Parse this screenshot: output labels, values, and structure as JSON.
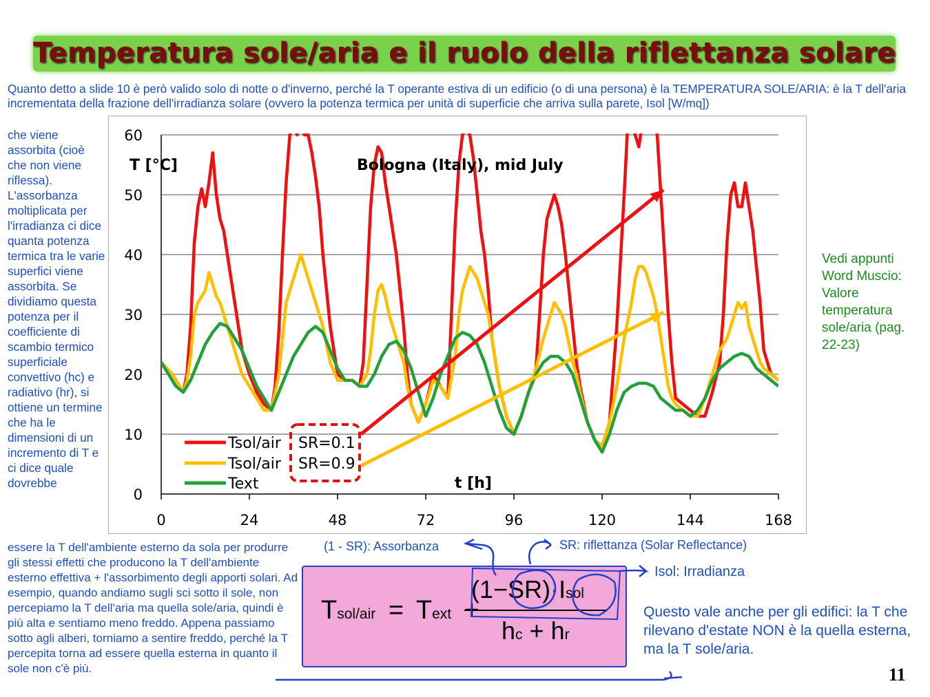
{
  "title": "Temperatura sole/aria e il ruolo della riflettanza solare",
  "intro_text": "Quanto detto a slide 10 è però valido solo di notte o d'inverno, perché la T operante estiva di un edificio (o di una persona) è la TEMPERATURA SOLE/ARIA: è la T dell'aria incrementata della frazione dell'irradianza solare (ovvero la potenza termica per unità di superficie che arriva sulla parete, Isol [W/mq])",
  "left_column_text": "che viene assorbita (cioè che non viene riflessa). L'assorbanza moltiplicata per l'irradianza ci dice quanta potenza termica tra le varie superfici viene assorbita. Se dividiamo questa potenza per il coefficiente di scambio termico superficiale convettivo (hc) e radiativo (hr), si ottiene un termine che ha le dimensioni di un incremento di T e ci dice quale dovrebbe",
  "bottom_text": "essere la T dell'ambiente esterno da sola per produrre gli stessi effetti che producono la T dell'ambiente esterno effettiva + l'assorbimento degli apporti solari. Ad esempio, quando andiamo sugli sci sotto il sole, non percepiamo la T dell'aria ma quella sole/aria, quindi è più alta e sentiamo meno freddo. Appena passiamo sotto agli alberi, torniamo a sentire freddo, perché la T percepita torna ad essere quella esterna in quanto il sole non c'è più.",
  "side_note": "Vedi appunti Word Muscio: Valore temperatura sole/aria (pag. 22-23)",
  "annotations": {
    "absorbance": "(1 - SR): Assorbanza",
    "reflectance": "SR: riflettanza (Solar Reflectance)",
    "irradiance": "Isol: Irradianza"
  },
  "formula": {
    "lhs_symbol": "T",
    "lhs_sub": "sol/air",
    "equals": "=",
    "text_symbol": "T",
    "text_sub": "ext",
    "plus": "+",
    "numerator_paren_open": "(1",
    "numerator_minus": "−",
    "numerator_sr": "SR",
    "numerator_paren_close": ")",
    "numerator_dot": "·",
    "numerator_i": "I",
    "numerator_i_sub": "sol",
    "den_h1": "h",
    "den_h1_sub": "c",
    "den_plus": "+",
    "den_h2": "h",
    "den_h2_sub": "r"
  },
  "conclusion": "Questo vale anche per gli edifici: la T che rilevano d'estate NON è la quella esterna, ma la T sole/aria.",
  "page_number": "11",
  "colors": {
    "title_bg": "#7ad14a",
    "title_text": "#7a0e0e",
    "body_text": "#1f4fb8",
    "side_note": "#1c8c1c",
    "red_series": "#f01010",
    "yellow_series": "#ffbf00",
    "green_series": "#22a03a",
    "formula_bg": "#f2a8d8",
    "annotation_ink": "#2340c8"
  },
  "chart_data": {
    "type": "line",
    "title": "Bologna (Italy), mid July",
    "xlabel": "t [h]",
    "ylabel": "T [°C]",
    "xlim": [
      0,
      168
    ],
    "ylim": [
      0,
      60
    ],
    "xticks": [
      0,
      24,
      48,
      72,
      96,
      120,
      144,
      168
    ],
    "yticks": [
      0,
      10,
      20,
      30,
      40,
      50,
      60
    ],
    "grid": "horizontal",
    "legend_position": "bottom-left",
    "legend": [
      "Tsol/air SR=0.1",
      "Tsol/air SR=0.9",
      "Text"
    ],
    "series": [
      {
        "name": "Tsol/air SR=0.1",
        "color": "#f01010",
        "x": [
          0,
          3,
          5,
          6,
          7,
          8,
          9,
          10,
          11,
          12,
          13,
          14,
          15,
          16,
          17,
          18,
          20,
          22,
          24,
          26,
          28,
          30,
          31,
          32,
          33,
          34,
          35,
          36,
          37,
          38,
          39,
          40,
          41,
          42,
          43,
          44,
          46,
          48,
          50,
          52,
          54,
          55,
          56,
          57,
          58,
          59,
          60,
          61,
          62,
          63,
          64,
          65,
          66,
          67,
          68,
          70,
          72,
          74,
          76,
          78,
          79,
          80,
          81,
          82,
          83,
          84,
          85,
          86,
          87,
          88,
          89,
          90,
          92,
          94,
          96,
          98,
          100,
          102,
          103,
          104,
          105,
          106,
          107,
          108,
          109,
          110,
          111,
          112,
          113,
          114,
          116,
          118,
          120,
          122,
          124,
          126,
          127,
          128,
          129,
          130,
          131,
          132,
          133,
          134,
          135,
          136,
          137,
          138,
          139,
          140,
          142,
          144,
          146,
          148,
          150,
          152,
          153,
          154,
          155,
          156,
          157,
          158,
          159,
          160,
          161,
          162,
          163,
          164,
          166,
          168
        ],
        "y": [
          22,
          20,
          18,
          17,
          20,
          28,
          42,
          48,
          51,
          48,
          52,
          57,
          50,
          46,
          44,
          40,
          32,
          24,
          20,
          17,
          15,
          14,
          18,
          27,
          40,
          52,
          60,
          62,
          60,
          62,
          60,
          60,
          57,
          53,
          48,
          40,
          28,
          20,
          19,
          19,
          18,
          22,
          35,
          48,
          55,
          58,
          57,
          52,
          48,
          44,
          40,
          34,
          28,
          20,
          15,
          12,
          15,
          20,
          18,
          16,
          30,
          45,
          55,
          60,
          61,
          60,
          56,
          50,
          44,
          40,
          34,
          26,
          18,
          13,
          10,
          13,
          17,
          21,
          30,
          40,
          46,
          48,
          50,
          48,
          45,
          40,
          34,
          28,
          22,
          18,
          12,
          9,
          8,
          12,
          28,
          50,
          62,
          62,
          60,
          58,
          62,
          62,
          62,
          62,
          60,
          50,
          40,
          30,
          22,
          16,
          15,
          14,
          13,
          13,
          17,
          22,
          30,
          42,
          50,
          52,
          48,
          48,
          52,
          48,
          44,
          38,
          32,
          24,
          20,
          19
        ]
      },
      {
        "name": "Tsol/air SR=0.9",
        "color": "#ffbf00",
        "x": [
          0,
          3,
          5,
          6,
          7,
          8,
          9,
          10,
          11,
          12,
          13,
          14,
          15,
          16,
          17,
          18,
          20,
          22,
          24,
          26,
          28,
          30,
          32,
          33,
          34,
          35,
          36,
          37,
          38,
          39,
          40,
          41,
          42,
          43,
          44,
          46,
          48,
          50,
          52,
          54,
          56,
          57,
          58,
          59,
          60,
          61,
          62,
          63,
          64,
          65,
          66,
          67,
          68,
          70,
          72,
          74,
          76,
          78,
          80,
          81,
          82,
          83,
          84,
          85,
          86,
          87,
          88,
          89,
          90,
          92,
          94,
          96,
          98,
          100,
          102,
          104,
          105,
          106,
          107,
          108,
          109,
          110,
          111,
          112,
          113,
          114,
          116,
          118,
          120,
          122,
          124,
          126,
          128,
          129,
          130,
          131,
          132,
          133,
          134,
          135,
          136,
          137,
          138,
          139,
          140,
          142,
          144,
          146,
          148,
          150,
          152,
          154,
          155,
          156,
          157,
          158,
          159,
          160,
          161,
          162,
          163,
          164,
          166,
          168
        ],
        "y": [
          22,
          20,
          18,
          17,
          19,
          23,
          30,
          32,
          33,
          34,
          37,
          35,
          33,
          32,
          30,
          28,
          24,
          20,
          18,
          16,
          14,
          14,
          20,
          26,
          32,
          34,
          36,
          38,
          40,
          38,
          36,
          34,
          32,
          30,
          28,
          22,
          19,
          19,
          19,
          18,
          20,
          24,
          30,
          34,
          35,
          33,
          30,
          28,
          26,
          24,
          22,
          18,
          15,
          12,
          15,
          19,
          18,
          16,
          23,
          30,
          34,
          36,
          38,
          37,
          36,
          34,
          32,
          30,
          26,
          18,
          13,
          10,
          13,
          17,
          21,
          26,
          28,
          30,
          32,
          31,
          30,
          28,
          25,
          22,
          20,
          17,
          12,
          9,
          8,
          12,
          18,
          26,
          32,
          36,
          38,
          38,
          37,
          35,
          33,
          30,
          26,
          22,
          18,
          16,
          15,
          14,
          13,
          13,
          16,
          20,
          24,
          26,
          28,
          30,
          32,
          31,
          32,
          28,
          26,
          24,
          22,
          21,
          20,
          19
        ]
      },
      {
        "name": "Text",
        "color": "#22a03a",
        "x": [
          0,
          2,
          4,
          6,
          8,
          10,
          12,
          14,
          16,
          18,
          20,
          22,
          24,
          26,
          28,
          30,
          32,
          34,
          36,
          38,
          40,
          42,
          44,
          46,
          48,
          50,
          52,
          54,
          56,
          58,
          60,
          62,
          64,
          66,
          68,
          70,
          72,
          74,
          76,
          78,
          80,
          82,
          84,
          86,
          88,
          90,
          92,
          94,
          96,
          98,
          100,
          102,
          104,
          106,
          108,
          110,
          112,
          114,
          116,
          118,
          120,
          122,
          124,
          126,
          128,
          130,
          132,
          134,
          136,
          138,
          140,
          142,
          144,
          146,
          148,
          150,
          152,
          154,
          156,
          158,
          160,
          162,
          164,
          166,
          168
        ],
        "y": [
          22,
          20,
          18,
          17,
          19,
          22,
          25,
          27,
          28.5,
          28,
          26,
          24,
          21,
          18,
          16,
          14,
          17,
          20,
          23,
          25,
          27,
          28,
          27,
          24,
          21,
          19,
          19,
          18,
          18,
          20,
          23,
          25,
          25.5,
          24,
          21,
          17,
          13,
          16,
          20,
          23,
          26,
          27,
          26.5,
          25,
          22,
          18,
          14,
          11,
          10,
          13,
          17,
          20,
          22,
          23,
          23,
          22,
          20,
          16,
          12,
          9,
          7,
          10,
          14,
          17,
          18,
          18.5,
          18.5,
          18,
          16,
          15,
          14,
          14,
          13,
          14,
          16,
          19,
          21,
          22,
          23,
          23.5,
          23,
          21,
          20,
          19,
          18
        ]
      }
    ],
    "series_labels": {
      "red_label": "Tsol/air",
      "red_sr": "SR=0.1",
      "yellow_label": "Tsol/air",
      "yellow_sr": "SR=0.9",
      "green_label": "Text"
    }
  }
}
